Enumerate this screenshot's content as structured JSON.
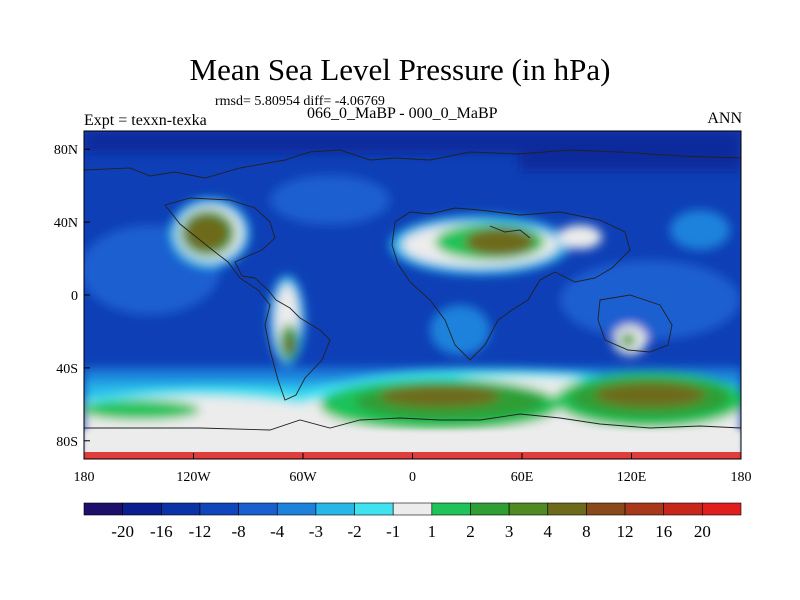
{
  "chart_data": {
    "type": "heatmap",
    "title": "Mean Sea Level Pressure (in hPa)",
    "stats_line": "rmsd= 5.80954 diff= -4.06769",
    "subtitle": "066_0_MaBP - 000_0_MaBP",
    "left_label": "Expt = texxn-texka",
    "right_label": "ANN",
    "x_range": [
      -180,
      180
    ],
    "y_range": [
      -90,
      90
    ],
    "x_ticks": [
      {
        "value": -180,
        "label": "180"
      },
      {
        "value": -120,
        "label": "120W"
      },
      {
        "value": -60,
        "label": "60W"
      },
      {
        "value": 0,
        "label": "0"
      },
      {
        "value": 60,
        "label": "60E"
      },
      {
        "value": 120,
        "label": "120E"
      },
      {
        "value": 180,
        "label": "180"
      }
    ],
    "y_ticks": [
      {
        "value": 80,
        "label": "80N"
      },
      {
        "value": 40,
        "label": "40N"
      },
      {
        "value": 0,
        "label": "0"
      },
      {
        "value": -40,
        "label": "40S"
      },
      {
        "value": -80,
        "label": "80S"
      }
    ],
    "colorbar": {
      "levels": [
        "-20",
        "-16",
        "-12",
        "-8",
        "-4",
        "-3",
        "-2",
        "-1",
        "1",
        "2",
        "3",
        "4",
        "8",
        "12",
        "16",
        "20"
      ],
      "colors": [
        "#1c0e6b",
        "#0a1e8f",
        "#0a33a8",
        "#1046bc",
        "#1a5fd0",
        "#1e82dc",
        "#27b6e8",
        "#3fe2ef",
        "#ececec",
        "#1ec35a",
        "#2e9e35",
        "#4f8a22",
        "#6e6a1c",
        "#884a1a",
        "#a8381a",
        "#c8261a",
        "#e01e1e"
      ]
    }
  }
}
